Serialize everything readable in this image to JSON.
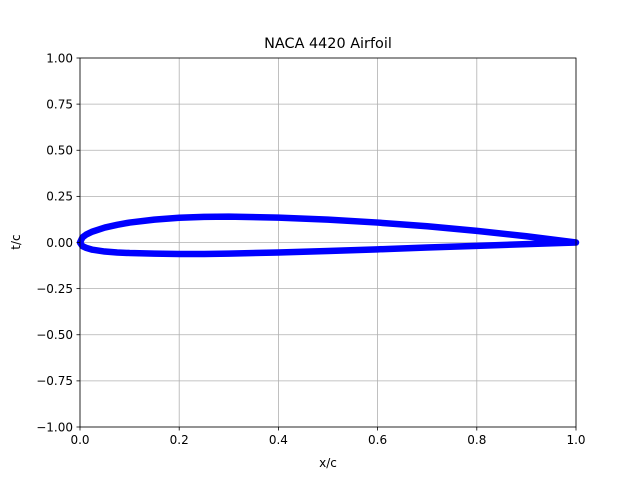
{
  "chart_data": {
    "type": "line",
    "title": "NACA 4420 Airfoil",
    "xlabel": "x/c",
    "ylabel": "t/c",
    "xlim": [
      0.0,
      1.0
    ],
    "ylim": [
      -1.0,
      1.0
    ],
    "grid": true,
    "x_ticks": [
      0.0,
      0.2,
      0.4,
      0.6,
      0.8,
      1.0
    ],
    "x_tick_labels": [
      "0.0",
      "0.2",
      "0.4",
      "0.6",
      "0.8",
      "1.0"
    ],
    "y_ticks": [
      1.0,
      0.75,
      0.5,
      0.25,
      0.0,
      -0.25,
      -0.5,
      -0.75,
      -1.0
    ],
    "y_tick_labels": [
      "1.00",
      "0.75",
      "0.50",
      "0.25",
      "0.00",
      "−0.25",
      "−0.50",
      "−0.75",
      "−1.00"
    ],
    "series": [
      {
        "color": "#0000ff",
        "x": [
          1.0,
          0.9,
          0.8,
          0.7,
          0.6,
          0.5,
          0.4,
          0.3,
          0.25,
          0.2,
          0.15,
          0.1,
          0.075,
          0.05,
          0.025,
          0.0125,
          0.005,
          0.0,
          0.005,
          0.0125,
          0.025,
          0.05,
          0.075,
          0.1,
          0.15,
          0.2,
          0.25,
          0.3,
          0.4,
          0.5,
          0.6,
          0.7,
          0.8,
          0.9,
          1.0
        ],
        "y": [
          0.0,
          0.034,
          0.063,
          0.088,
          0.108,
          0.124,
          0.135,
          0.14,
          0.139,
          0.134,
          0.124,
          0.108,
          0.096,
          0.081,
          0.059,
          0.043,
          0.028,
          0.0,
          -0.02,
          -0.029,
          -0.039,
          -0.049,
          -0.054,
          -0.057,
          -0.06,
          -0.062,
          -0.062,
          -0.06,
          -0.054,
          -0.046,
          -0.037,
          -0.027,
          -0.018,
          -0.009,
          0.0
        ]
      }
    ]
  }
}
